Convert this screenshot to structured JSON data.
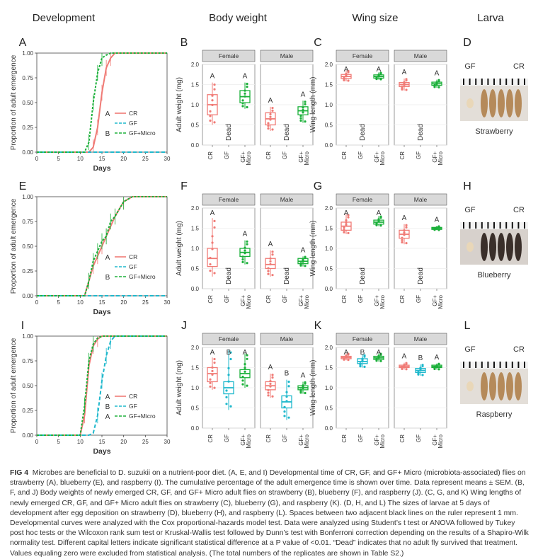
{
  "columns": [
    "Development",
    "Body weight",
    "Wing size",
    "Larva"
  ],
  "axis": {
    "dev_y": "Proportion of adult emergence",
    "dev_x": "Days",
    "bw_y": "Adult weight (mg)",
    "wing_y": "Wing length (mm)"
  },
  "strip": {
    "female": "Female",
    "male": "Male"
  },
  "groups": [
    "CR",
    "GF",
    "GF+\nMicro"
  ],
  "dead_label": "Dead",
  "colors": {
    "CR": "#F07B76",
    "GF": "#1FB8CC",
    "GFMicro": "#1BB03A"
  },
  "legend": [
    {
      "name": "CR",
      "style": "solid"
    },
    {
      "name": "GF",
      "style": "dash"
    },
    {
      "name": "GF+Micro",
      "style": "dash"
    }
  ],
  "rows": [
    {
      "panels": {
        "dev": "A",
        "bw": "B",
        "wing": "C",
        "larva": "D"
      },
      "legend_letters": [
        "A",
        "",
        "B"
      ],
      "larva_labels": {
        "left": "GF",
        "right": "CR"
      },
      "larva_caption": "Strawberry",
      "bw_yticks": [
        "0.0",
        "0.5",
        "1.0",
        "1.5",
        "2.0"
      ],
      "bw_letters": {
        "female": [
          "A",
          "",
          "A"
        ],
        "male": [
          "A",
          "",
          "A"
        ]
      },
      "bw_dead": {
        "female": [
          false,
          true,
          false
        ],
        "male": [
          false,
          true,
          false
        ]
      },
      "wing_yticks": [
        "0.0",
        "0.5",
        "1.0",
        "1.5",
        "2.0"
      ],
      "wing_letters": {
        "female": [
          "A",
          "",
          "A"
        ],
        "male": [
          "A",
          "",
          "A"
        ]
      },
      "wing_dead": {
        "female": [
          false,
          true,
          false
        ],
        "male": [
          false,
          true,
          false
        ]
      }
    },
    {
      "panels": {
        "dev": "E",
        "bw": "F",
        "wing": "G",
        "larva": "H"
      },
      "legend_letters": [
        "A",
        "",
        "B"
      ],
      "larva_labels": {
        "left": "GF",
        "right": "CR"
      },
      "larva_caption": "Blueberry",
      "bw_yticks": [
        "0.0",
        "0.5",
        "1.0",
        "1.5",
        "2.0"
      ],
      "bw_letters": {
        "female": [
          "A",
          "",
          "A"
        ],
        "male": [
          "A",
          "",
          "A"
        ]
      },
      "bw_dead": {
        "female": [
          false,
          true,
          false
        ],
        "male": [
          false,
          true,
          false
        ]
      },
      "wing_yticks": [
        "0.0",
        "0.5",
        "1.0",
        "1.5",
        "2.0"
      ],
      "wing_letters": {
        "female": [
          "A",
          "",
          "A"
        ],
        "male": [
          "A",
          "",
          "A"
        ]
      },
      "wing_dead": {
        "female": [
          false,
          true,
          false
        ],
        "male": [
          false,
          true,
          false
        ]
      }
    },
    {
      "panels": {
        "dev": "I",
        "bw": "J",
        "wing": "K",
        "larva": "L"
      },
      "legend_letters": [
        "A",
        "B",
        "A"
      ],
      "larva_labels": {
        "left": "GF",
        "right": "CR"
      },
      "larva_caption": "Raspberry",
      "bw_yticks": [
        "0.0",
        "0.5",
        "1.0",
        "1.5",
        "2.0"
      ],
      "bw_letters": {
        "female": [
          "A",
          "B",
          "A"
        ],
        "male": [
          "A",
          "B",
          "A"
        ]
      },
      "bw_dead": {
        "female": [
          false,
          false,
          false
        ],
        "male": [
          false,
          false,
          false
        ]
      },
      "wing_yticks": [
        "0.0",
        "0.5",
        "1.0",
        "1.5",
        "2.0"
      ],
      "wing_letters": {
        "female": [
          "A",
          "B",
          "A"
        ],
        "male": [
          "A",
          "B",
          "A"
        ]
      },
      "wing_dead": {
        "female": [
          false,
          false,
          false
        ],
        "male": [
          false,
          false,
          false
        ]
      }
    }
  ],
  "chart_data": [
    {
      "type": "line",
      "panel": "A",
      "xlabel": "Days",
      "ylabel": "Proportion of adult emergence",
      "xlim": [
        0,
        30
      ],
      "ylim": [
        0,
        1
      ],
      "x_ticks": [
        0,
        5,
        10,
        15,
        20,
        25,
        30
      ],
      "y_ticks": [
        0,
        0.25,
        0.5,
        0.75,
        1
      ],
      "series": [
        {
          "name": "CR",
          "x": [
            0,
            12,
            13,
            14,
            15,
            16,
            17,
            18,
            20,
            30
          ],
          "y": [
            0,
            0,
            0.05,
            0.25,
            0.6,
            0.85,
            0.95,
            1,
            1,
            1
          ]
        },
        {
          "name": "GF",
          "x": [
            0,
            30
          ],
          "y": [
            0,
            0
          ]
        },
        {
          "name": "GF+Micro",
          "x": [
            0,
            11,
            12,
            13,
            14,
            15,
            16,
            17,
            18,
            30
          ],
          "y": [
            0,
            0,
            0.1,
            0.5,
            0.8,
            0.95,
            0.98,
            1,
            1,
            1
          ]
        }
      ]
    },
    {
      "type": "line",
      "panel": "E",
      "xlabel": "Days",
      "ylabel": "Proportion of adult emergence",
      "xlim": [
        0,
        30
      ],
      "ylim": [
        0,
        1
      ],
      "x_ticks": [
        0,
        5,
        10,
        15,
        20,
        25,
        30
      ],
      "y_ticks": [
        0,
        0.25,
        0.5,
        0.75,
        1
      ],
      "series": [
        {
          "name": "CR",
          "x": [
            0,
            11,
            12,
            13,
            14,
            15,
            16,
            18,
            20,
            22,
            30
          ],
          "y": [
            0,
            0,
            0.15,
            0.3,
            0.4,
            0.5,
            0.6,
            0.8,
            0.95,
            1,
            1
          ]
        },
        {
          "name": "GF",
          "x": [
            0,
            30
          ],
          "y": [
            0,
            0
          ]
        },
        {
          "name": "GF+Micro",
          "x": [
            0,
            11,
            12,
            13,
            14,
            15,
            16,
            17,
            18,
            20,
            22,
            30
          ],
          "y": [
            0,
            0,
            0.15,
            0.35,
            0.45,
            0.55,
            0.6,
            0.75,
            0.8,
            0.95,
            1,
            1
          ]
        }
      ]
    },
    {
      "type": "line",
      "panel": "I",
      "xlabel": "Days",
      "ylabel": "Proportion of adult emergence",
      "xlim": [
        0,
        30
      ],
      "ylim": [
        0,
        1
      ],
      "x_ticks": [
        0,
        5,
        10,
        15,
        20,
        25,
        30
      ],
      "y_ticks": [
        0,
        0.25,
        0.5,
        0.75,
        1
      ],
      "series": [
        {
          "name": "CR",
          "x": [
            0,
            10,
            11,
            12,
            13,
            14,
            15,
            16,
            30
          ],
          "y": [
            0,
            0,
            0.2,
            0.7,
            0.9,
            0.97,
            1,
            1,
            1
          ]
        },
        {
          "name": "GF",
          "x": [
            0,
            12,
            13,
            14,
            15,
            16,
            17,
            18,
            30
          ],
          "y": [
            0,
            0,
            0.02,
            0.2,
            0.55,
            0.8,
            0.95,
            1,
            1
          ]
        },
        {
          "name": "GF+Micro",
          "x": [
            0,
            10,
            11,
            12,
            13,
            14,
            15,
            30
          ],
          "y": [
            0,
            0,
            0.3,
            0.75,
            0.92,
            0.98,
            1,
            1
          ]
        }
      ]
    },
    {
      "type": "box",
      "panel": "B",
      "ylabel": "Adult weight (mg)",
      "ylim": [
        0,
        2
      ],
      "female": {
        "CR": [
          0.5,
          0.75,
          1.0,
          1.25,
          1.55
        ],
        "GF": null,
        "GF+Micro": [
          0.9,
          1.05,
          1.2,
          1.35,
          1.55
        ]
      },
      "male": {
        "CR": [
          0.35,
          0.5,
          0.65,
          0.8,
          0.95
        ],
        "GF": null,
        "GF+Micro": [
          0.55,
          0.75,
          0.85,
          0.95,
          1.1
        ]
      }
    },
    {
      "type": "box",
      "panel": "F",
      "ylabel": "Adult weight (mg)",
      "ylim": [
        0,
        2
      ],
      "female": {
        "CR": [
          0.3,
          0.55,
          0.75,
          1.0,
          1.75
        ],
        "GF": null,
        "GF+Micro": [
          0.6,
          0.8,
          0.9,
          1.0,
          1.2
        ]
      },
      "male": {
        "CR": [
          0.3,
          0.5,
          0.6,
          0.75,
          0.95
        ],
        "GF": null,
        "GF+Micro": [
          0.55,
          0.62,
          0.68,
          0.75,
          0.8
        ]
      }
    },
    {
      "type": "box",
      "panel": "J",
      "ylabel": "Adult weight (mg)",
      "ylim": [
        0,
        2
      ],
      "female": {
        "CR": [
          0.95,
          1.15,
          1.35,
          1.5,
          1.75
        ],
        "GF": [
          0.45,
          0.85,
          1.0,
          1.15,
          1.95
        ],
        "GF+Micro": [
          1.0,
          1.25,
          1.35,
          1.45,
          1.85
        ]
      },
      "male": {
        "CR": [
          0.75,
          0.95,
          1.05,
          1.15,
          1.35
        ],
        "GF": [
          0.2,
          0.5,
          0.65,
          0.8,
          1.2
        ],
        "GF+Micro": [
          0.85,
          0.95,
          1.0,
          1.05,
          1.15
        ]
      }
    },
    {
      "type": "box",
      "panel": "C",
      "ylabel": "Wing length (mm)",
      "ylim": [
        0,
        2
      ],
      "female": {
        "CR": [
          1.58,
          1.65,
          1.7,
          1.75,
          1.85
        ],
        "GF": null,
        "GF+Micro": [
          1.62,
          1.66,
          1.7,
          1.74,
          1.8
        ]
      },
      "male": {
        "CR": [
          1.35,
          1.45,
          1.5,
          1.55,
          1.65
        ],
        "GF": null,
        "GF+Micro": [
          1.42,
          1.48,
          1.52,
          1.56,
          1.62
        ]
      }
    },
    {
      "type": "box",
      "panel": "G",
      "ylabel": "Wing length (mm)",
      "ylim": [
        0,
        2
      ],
      "female": {
        "CR": [
          1.35,
          1.45,
          1.55,
          1.65,
          1.85
        ],
        "GF": null,
        "GF+Micro": [
          1.55,
          1.6,
          1.65,
          1.7,
          1.8
        ]
      },
      "male": {
        "CR": [
          1.1,
          1.25,
          1.35,
          1.45,
          1.6
        ],
        "GF": null,
        "GF+Micro": [
          1.45,
          1.47,
          1.5,
          1.52,
          1.55
        ]
      }
    },
    {
      "type": "box",
      "panel": "K",
      "ylabel": "Wing length (mm)",
      "ylim": [
        0,
        2
      ],
      "female": {
        "CR": [
          1.68,
          1.72,
          1.75,
          1.78,
          1.85
        ],
        "GF": [
          1.5,
          1.6,
          1.65,
          1.72,
          1.82
        ],
        "GF+Micro": [
          1.65,
          1.7,
          1.74,
          1.78,
          1.85
        ]
      },
      "male": {
        "CR": [
          1.45,
          1.5,
          1.53,
          1.56,
          1.62
        ],
        "GF": [
          1.3,
          1.38,
          1.43,
          1.48,
          1.58
        ],
        "GF+Micro": [
          1.45,
          1.5,
          1.53,
          1.56,
          1.6
        ]
      }
    }
  ],
  "caption": {
    "label": "FIG 4",
    "text": "Microbes are beneficial to D. suzukii on a nutrient-poor diet. (A, E, and I) Developmental time of CR, GF, and GF+ Micro (microbiota-associated) flies on strawberry (A), blueberry (E), and raspberry (I). The cumulative percentage of the adult emergence time is shown over time. Data represent means ± SEM. (B, F, and J) Body weights of newly emerged CR, GF, and GF+ Micro adult flies on strawberry (B), blueberry (F), and raspberry (J). (C, G, and K) Wing lengths of newly emerged CR, GF, and GF+ Micro adult flies on strawberry (C), blueberry (G), and raspberry (K). (D, H, and L) The sizes of larvae at 5 days of development after egg deposition on strawberry (D), blueberry (H), and raspberry (L). Spaces between two adjacent black lines on the ruler represent 1 mm. Developmental curves were analyzed with the Cox proportional-hazards model test. Data were analyzed using Student’s t test or ANOVA followed by Tukey post hoc tests or the Wilcoxon rank sum test or Kruskal-Wallis test followed by Dunn’s test with Bonferroni correction depending on the results of a Shapiro-Wilk normality test. Different capital letters indicate significant statistical difference at a P value of <0.01. “Dead” indicates that no adult fly survived that treatment. Values equaling zero were excluded from statistical analysis. (The total numbers of the replicates are shown in Table S2.)"
  }
}
